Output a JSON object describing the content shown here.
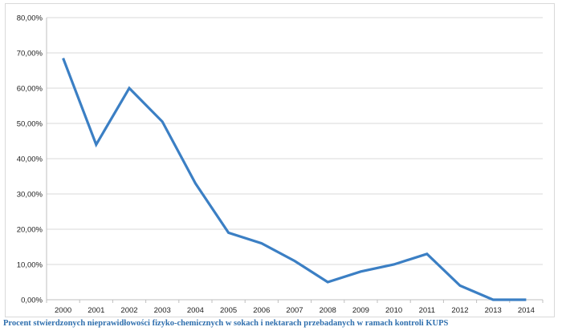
{
  "chart_data": {
    "type": "line",
    "title": "",
    "xlabel": "",
    "ylabel": "",
    "categories": [
      "2000",
      "2001",
      "2002",
      "2003",
      "2004",
      "2005",
      "2006",
      "2007",
      "2008",
      "2009",
      "2010",
      "2011",
      "2012",
      "2013",
      "2014"
    ],
    "series": [
      {
        "values": [
          68.5,
          44.0,
          60.0,
          50.5,
          33.0,
          19.0,
          16.0,
          11.0,
          5.0,
          8.0,
          10.0,
          13.0,
          4.0,
          0.0,
          0.0
        ],
        "color": "#3b7fc4"
      }
    ],
    "ylim": [
      0,
      80
    ],
    "y_ticks": [
      0,
      10,
      20,
      30,
      40,
      50,
      60,
      70,
      80
    ],
    "y_tick_labels": [
      "0,00%",
      "10,00%",
      "20,00%",
      "30,00%",
      "40,00%",
      "50,00%",
      "60,00%",
      "70,00%",
      "80,00%"
    ],
    "grid": true,
    "legend": "none",
    "gridline_color": "#d9d9d9"
  },
  "caption": "Procent stwierdzonych nieprawidłowości fizyko-chemicznych w sokach i nektarach przebadanych w ramach kontroli KUPS"
}
